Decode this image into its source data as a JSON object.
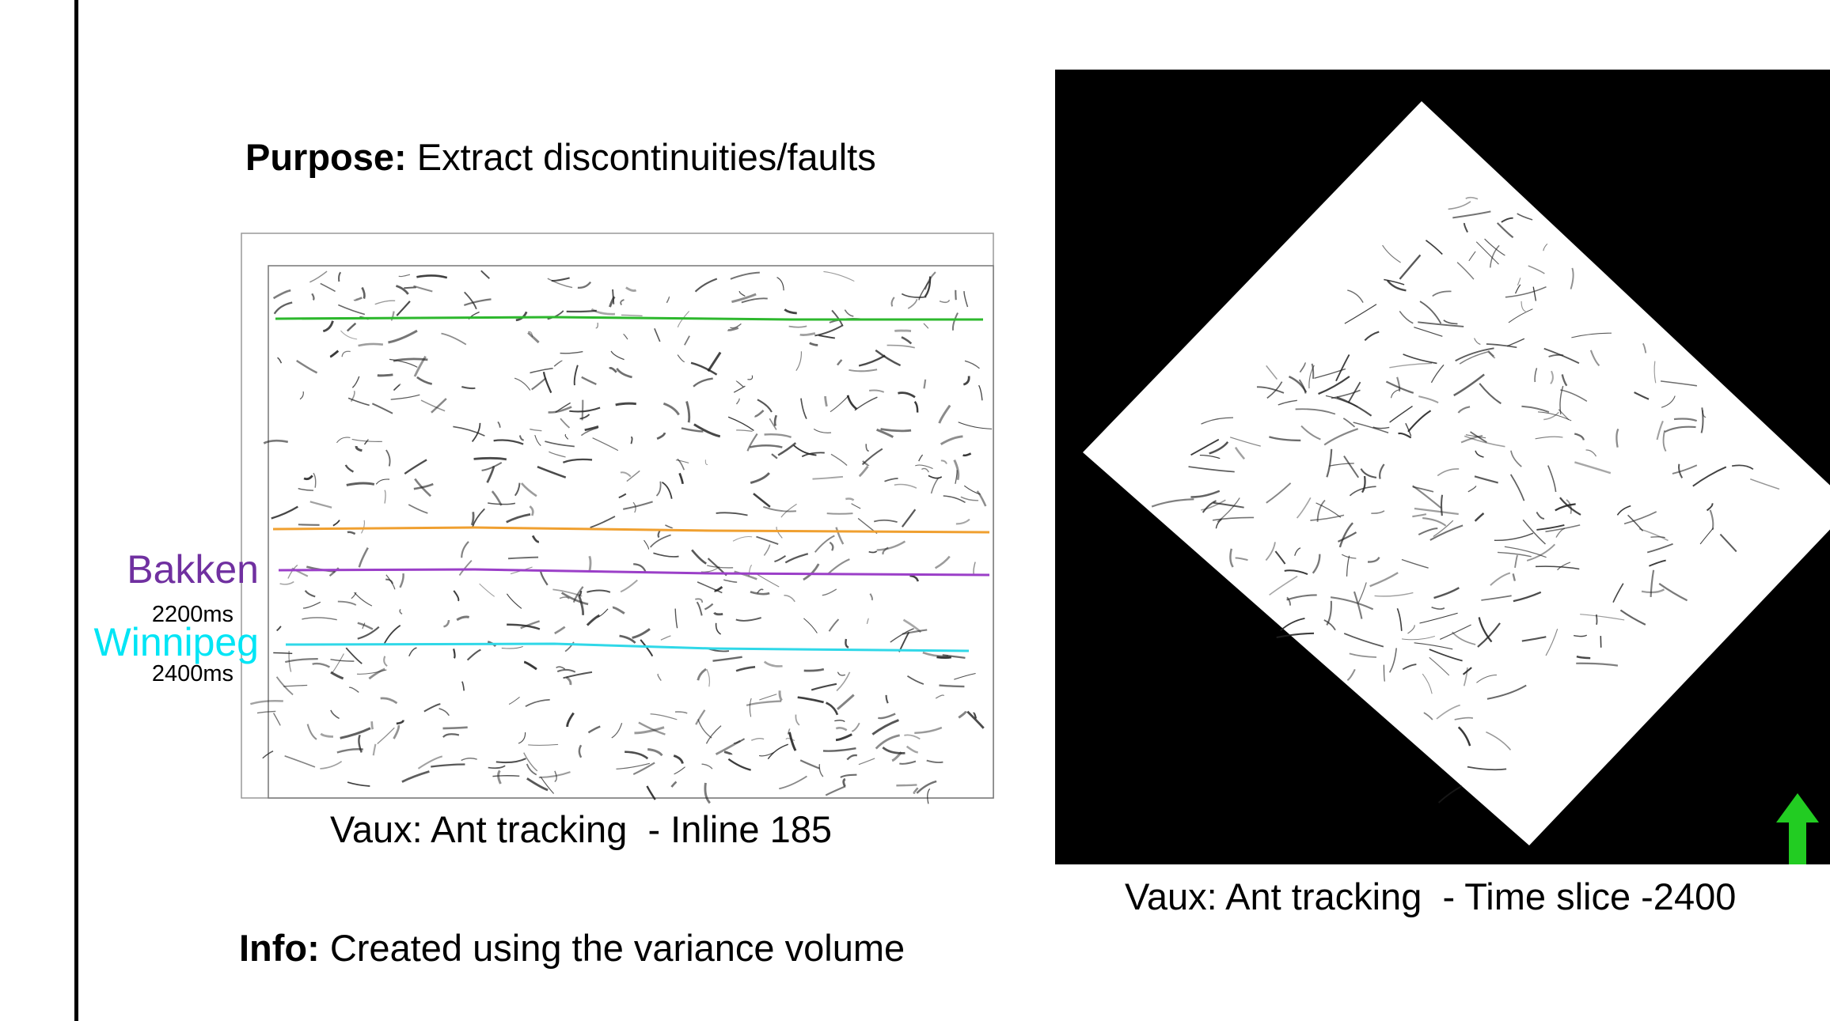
{
  "purpose": {
    "label": "Purpose:",
    "text": "Extract discontinuities/faults"
  },
  "info": {
    "label": "Info:",
    "text": "Created using the variance volume"
  },
  "inline_panel": {
    "caption": "Vaux: Ant tracking  - Inline 185",
    "horizons": [
      {
        "name": "Bakken",
        "time": "2200ms"
      },
      {
        "name": "Winnipeg",
        "time": "2400ms"
      }
    ]
  },
  "timeslice_panel": {
    "caption": "Vaux: Ant tracking  - Time slice -2400"
  }
}
